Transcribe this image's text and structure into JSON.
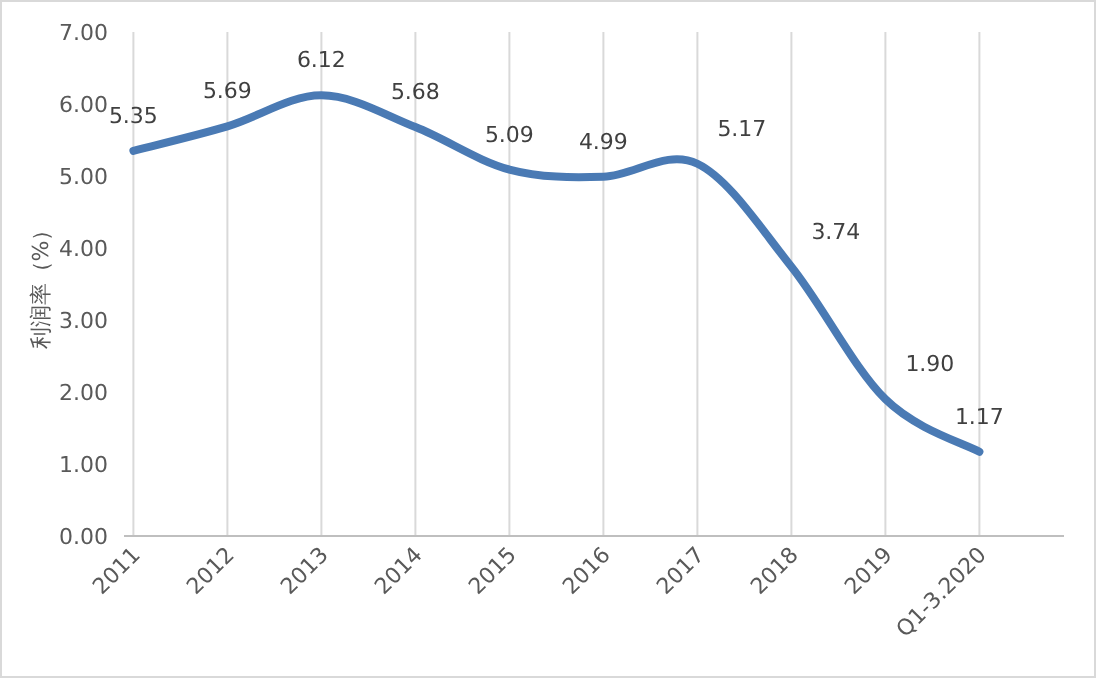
{
  "chart_data": {
    "type": "line",
    "ylabel": "利润率（%）",
    "categories": [
      "2011",
      "2012",
      "2013",
      "2014",
      "2015",
      "2016",
      "2017",
      "2018",
      "2019",
      "Q1-3.2020"
    ],
    "series": [
      {
        "color": "#4a7ab4",
        "values": [
          5.35,
          5.69,
          6.12,
          5.68,
          5.09,
          4.99,
          5.17,
          3.74,
          1.9,
          1.17
        ],
        "value_labels": [
          "5.35",
          "5.69",
          "6.12",
          "5.68",
          "5.09",
          "4.99",
          "5.17",
          "3.74",
          "1.90",
          "1.17"
        ]
      }
    ],
    "ylim": [
      0,
      7
    ],
    "yticks": [
      {
        "value": 0,
        "label": "0.00"
      },
      {
        "value": 1,
        "label": "1.00"
      },
      {
        "value": 2,
        "label": "2.00"
      },
      {
        "value": 3,
        "label": "3.00"
      },
      {
        "value": 4,
        "label": "4.00"
      },
      {
        "value": 5,
        "label": "5.00"
      },
      {
        "value": 6,
        "label": "6.00"
      },
      {
        "value": 7,
        "label": "7.00"
      }
    ],
    "grid": "x"
  }
}
